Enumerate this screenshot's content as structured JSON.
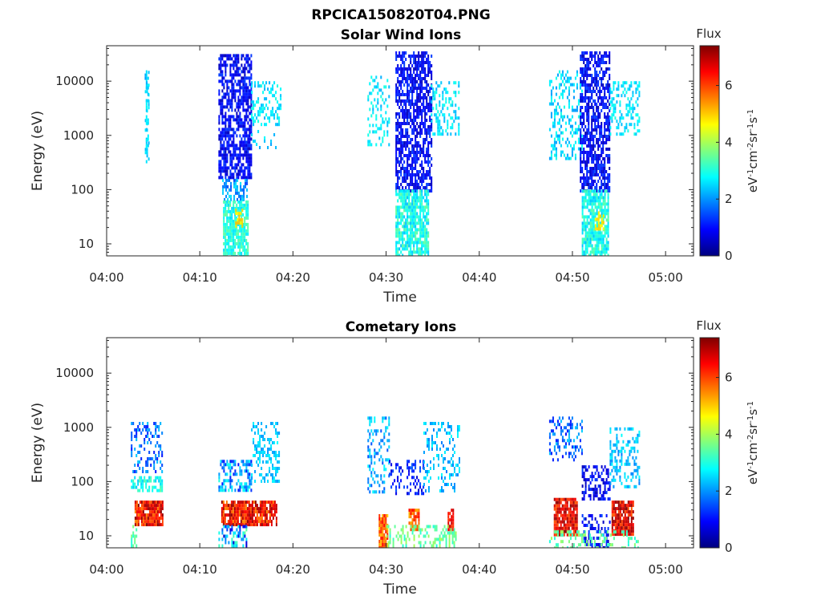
{
  "figure": {
    "title": "RPCICA150820T04.PNG"
  },
  "colormap": [
    "#00007f",
    "#0000ff",
    "#007fff",
    "#00ffff",
    "#7fff7f",
    "#ffff00",
    "#ff7f00",
    "#ff0000",
    "#7f0000"
  ],
  "chart_data": [
    {
      "type": "heatmap",
      "title": "Solar Wind Ions",
      "xlabel": "Time",
      "ylabel": "Energy (eV)",
      "xlim": [
        "04:00",
        "05:03"
      ],
      "ylim": [
        6,
        45000
      ],
      "yscale": "log",
      "xticks": [
        "04:00",
        "04:10",
        "04:20",
        "04:30",
        "04:40",
        "04:50",
        "05:00"
      ],
      "yticks": [
        {
          "value": 10,
          "label": "10"
        },
        {
          "value": 100,
          "label": "100"
        },
        {
          "value": 1000,
          "label": "1000"
        },
        {
          "value": 10000,
          "label": "10000"
        }
      ],
      "colorbar": {
        "title": "Flux",
        "label": "eV-1cm-2sr-1s-1",
        "min": 0,
        "max": 7.4,
        "ticks": [
          {
            "value": 0,
            "label": "0"
          },
          {
            "value": 2,
            "label": "2"
          },
          {
            "value": 4,
            "label": "4"
          },
          {
            "value": 6,
            "label": "6"
          }
        ]
      },
      "bursts": [
        {
          "start": 4.1,
          "end": 4.46,
          "elog_min": 2.5,
          "elog_max": 4.25,
          "flux_low": 2.2,
          "flux_high": 2.8,
          "density": 0.3
        },
        {
          "start": 4.2,
          "end": 4.41,
          "elog_min": 2.5,
          "elog_max": 4.2,
          "flux_low": 2.3,
          "flux_high": 2.8,
          "density": 0.3
        },
        {
          "start": 4.2,
          "end": 4.27,
          "elog_min": 3.0,
          "elog_max": 4.2,
          "flux_low": 2.3,
          "flux_high": 2.8,
          "density": 0.3
        },
        {
          "start": 4.23,
          "end": 4.32,
          "elog_min": 3.75,
          "elog_max": 4.0,
          "flux_low": 2.1,
          "flux_high": 2.8,
          "density": 0.2
        },
        {
          "start": 4.23,
          "end": 4.32,
          "elog_min": 3.0,
          "elog_max": 3.6,
          "flux_low": 2.5,
          "flux_high": 3.0,
          "density": 0.2
        },
        {
          "start": 4.2,
          "end": 4.32,
          "elog_min": 2.5,
          "elog_max": 3.0,
          "flux_low": 2.5,
          "flux_high": 3.0,
          "density": 0.2
        },
        {
          "start": 4.2,
          "end": 4.26,
          "elog_min": 2.5,
          "elog_max": 2.7,
          "flux_low": 2.4,
          "flux_high": 2.8,
          "density": 0.3
        },
        {
          "start": 4.08,
          "end": 4.13,
          "elog_min": 4.0,
          "elog_max": 4.2,
          "flux_low": 2.0,
          "flux_high": 2.4,
          "density": 0.4
        },
        {
          "start": 12.0,
          "end": 15.5,
          "elog_min": 2.2,
          "elog_max": 4.5,
          "flux_low": 0.4,
          "flux_high": 1.4,
          "density": 0.65
        },
        {
          "start": 15.5,
          "end": 18.6,
          "elog_min": 3.2,
          "elog_max": 4.0,
          "flux_low": 2.2,
          "flux_high": 3.0,
          "density": 0.35
        },
        {
          "start": 15.5,
          "end": 18.6,
          "elog_min": 2.8,
          "elog_max": 3.1,
          "flux_low": 2.0,
          "flux_high": 2.8,
          "density": 0.15
        },
        {
          "start": 12.4,
          "end": 15.0,
          "elog_min": 1.8,
          "elog_max": 2.2,
          "flux_low": 1.4,
          "flux_high": 2.6,
          "density": 0.6
        },
        {
          "start": 12.5,
          "end": 15.2,
          "elog_min": 0.78,
          "elog_max": 1.8,
          "flux_low": 2.5,
          "flux_high": 3.5,
          "density": 0.8
        },
        {
          "start": 13.8,
          "end": 14.6,
          "elog_min": 1.3,
          "elog_max": 1.65,
          "flux_low": 4.6,
          "flux_high": 5.2,
          "density": 0.6
        },
        {
          "start": 28.0,
          "end": 30.3,
          "elog_min": 2.8,
          "elog_max": 4.1,
          "flux_low": 2.2,
          "flux_high": 3.0,
          "density": 0.3
        },
        {
          "start": 31.0,
          "end": 34.8,
          "elog_min": 2.0,
          "elog_max": 4.55,
          "flux_low": 0.4,
          "flux_high": 1.4,
          "density": 0.65
        },
        {
          "start": 34.8,
          "end": 37.8,
          "elog_min": 3.0,
          "elog_max": 4.0,
          "flux_low": 2.2,
          "flux_high": 3.0,
          "density": 0.35
        },
        {
          "start": 31.0,
          "end": 34.5,
          "elog_min": 0.78,
          "elog_max": 2.0,
          "flux_low": 2.3,
          "flux_high": 3.5,
          "density": 0.8
        },
        {
          "start": 47.5,
          "end": 51.0,
          "elog_min": 2.6,
          "elog_max": 4.2,
          "flux_low": 2.0,
          "flux_high": 3.0,
          "density": 0.35
        },
        {
          "start": 50.8,
          "end": 54.0,
          "elog_min": 2.0,
          "elog_max": 4.55,
          "flux_low": 0.4,
          "flux_high": 1.4,
          "density": 0.65
        },
        {
          "start": 54.0,
          "end": 57.2,
          "elog_min": 3.0,
          "elog_max": 4.0,
          "flux_low": 2.2,
          "flux_high": 3.0,
          "density": 0.35
        },
        {
          "start": 51.0,
          "end": 53.8,
          "elog_min": 0.78,
          "elog_max": 2.0,
          "flux_low": 2.3,
          "flux_high": 3.5,
          "density": 0.8
        },
        {
          "start": 52.4,
          "end": 53.4,
          "elog_min": 1.3,
          "elog_max": 1.6,
          "flux_low": 4.4,
          "flux_high": 5.0,
          "density": 0.5
        }
      ]
    },
    {
      "type": "heatmap",
      "title": "Cometary Ions",
      "xlabel": "Time",
      "ylabel": "Energy (eV)",
      "xlim": [
        "04:00",
        "05:03"
      ],
      "ylim": [
        6,
        45000
      ],
      "yscale": "log",
      "xticks": [
        "04:00",
        "04:10",
        "04:20",
        "04:30",
        "04:40",
        "04:50",
        "05:00"
      ],
      "yticks": [
        {
          "value": 10,
          "label": "10"
        },
        {
          "value": 100,
          "label": "100"
        },
        {
          "value": 1000,
          "label": "1000"
        },
        {
          "value": 10000,
          "label": "10000"
        }
      ],
      "colorbar": {
        "title": "Flux",
        "label": "eV-1cm-2sr-1s-1",
        "min": 0,
        "max": 7.4,
        "ticks": [
          {
            "value": 0,
            "label": "0"
          },
          {
            "value": 2,
            "label": "2"
          },
          {
            "value": 4,
            "label": "4"
          },
          {
            "value": 6,
            "label": "6"
          }
        ]
      },
      "bursts": [
        {
          "start": 2.6,
          "end": 6.0,
          "elog_min": 2.2,
          "elog_max": 3.1,
          "flux_low": 1.0,
          "flux_high": 2.4,
          "density": 0.35
        },
        {
          "start": 2.6,
          "end": 6.0,
          "elog_min": 1.85,
          "elog_max": 2.1,
          "flux_low": 2.4,
          "flux_high": 3.5,
          "density": 0.6
        },
        {
          "start": 3.0,
          "end": 6.0,
          "elog_min": 1.2,
          "elog_max": 1.65,
          "flux_low": 5.5,
          "flux_high": 7.4,
          "density": 0.9
        },
        {
          "start": 2.6,
          "end": 3.2,
          "elog_min": 0.78,
          "elog_max": 1.2,
          "flux_low": 3.0,
          "flux_high": 3.8,
          "density": 0.5
        },
        {
          "start": 12.0,
          "end": 15.5,
          "elog_min": 1.85,
          "elog_max": 2.4,
          "flux_low": 1.0,
          "flux_high": 3.0,
          "density": 0.5
        },
        {
          "start": 15.5,
          "end": 18.5,
          "elog_min": 2.0,
          "elog_max": 3.1,
          "flux_low": 2.0,
          "flux_high": 2.8,
          "density": 0.35
        },
        {
          "start": 12.3,
          "end": 18.3,
          "elog_min": 1.2,
          "elog_max": 1.65,
          "flux_low": 5.5,
          "flux_high": 7.3,
          "density": 0.85
        },
        {
          "start": 12.0,
          "end": 15.0,
          "elog_min": 0.78,
          "elog_max": 1.2,
          "flux_low": 0.5,
          "flux_high": 3.5,
          "density": 0.45
        },
        {
          "start": 28.0,
          "end": 30.3,
          "elog_min": 1.8,
          "elog_max": 3.2,
          "flux_low": 1.5,
          "flux_high": 2.8,
          "density": 0.3
        },
        {
          "start": 30.3,
          "end": 34.0,
          "elog_min": 1.8,
          "elog_max": 2.4,
          "flux_low": 0.5,
          "flux_high": 1.6,
          "density": 0.35
        },
        {
          "start": 34.0,
          "end": 37.8,
          "elog_min": 1.8,
          "elog_max": 3.1,
          "flux_low": 1.8,
          "flux_high": 2.8,
          "density": 0.3
        },
        {
          "start": 29.2,
          "end": 30.2,
          "elog_min": 0.78,
          "elog_max": 1.4,
          "flux_low": 5.0,
          "flux_high": 6.5,
          "density": 0.85
        },
        {
          "start": 32.4,
          "end": 33.6,
          "elog_min": 1.1,
          "elog_max": 1.5,
          "flux_low": 5.0,
          "flux_high": 6.5,
          "density": 0.8
        },
        {
          "start": 36.6,
          "end": 37.2,
          "elog_min": 1.1,
          "elog_max": 1.5,
          "flux_low": 6.0,
          "flux_high": 7.0,
          "density": 0.8
        },
        {
          "start": 30.0,
          "end": 37.5,
          "elog_min": 0.78,
          "elog_max": 1.2,
          "flux_low": 3.0,
          "flux_high": 4.0,
          "density": 0.35
        },
        {
          "start": 47.5,
          "end": 51.0,
          "elog_min": 2.4,
          "elog_max": 3.2,
          "flux_low": 1.0,
          "flux_high": 2.4,
          "density": 0.3
        },
        {
          "start": 51.0,
          "end": 54.0,
          "elog_min": 1.7,
          "elog_max": 2.3,
          "flux_low": 0.4,
          "flux_high": 1.4,
          "density": 0.4
        },
        {
          "start": 54.0,
          "end": 57.2,
          "elog_min": 1.9,
          "elog_max": 3.0,
          "flux_low": 1.8,
          "flux_high": 2.8,
          "density": 0.35
        },
        {
          "start": 48.0,
          "end": 50.5,
          "elog_min": 1.0,
          "elog_max": 1.7,
          "flux_low": 5.8,
          "flux_high": 7.4,
          "density": 0.9
        },
        {
          "start": 54.2,
          "end": 56.5,
          "elog_min": 1.05,
          "elog_max": 1.65,
          "flux_low": 5.8,
          "flux_high": 7.4,
          "density": 0.9
        },
        {
          "start": 51.0,
          "end": 54.0,
          "elog_min": 0.78,
          "elog_max": 1.4,
          "flux_low": 0.4,
          "flux_high": 1.6,
          "density": 0.3
        },
        {
          "start": 47.5,
          "end": 57.0,
          "elog_min": 0.78,
          "elog_max": 1.1,
          "flux_low": 3.0,
          "flux_high": 4.0,
          "density": 0.3
        }
      ]
    }
  ]
}
